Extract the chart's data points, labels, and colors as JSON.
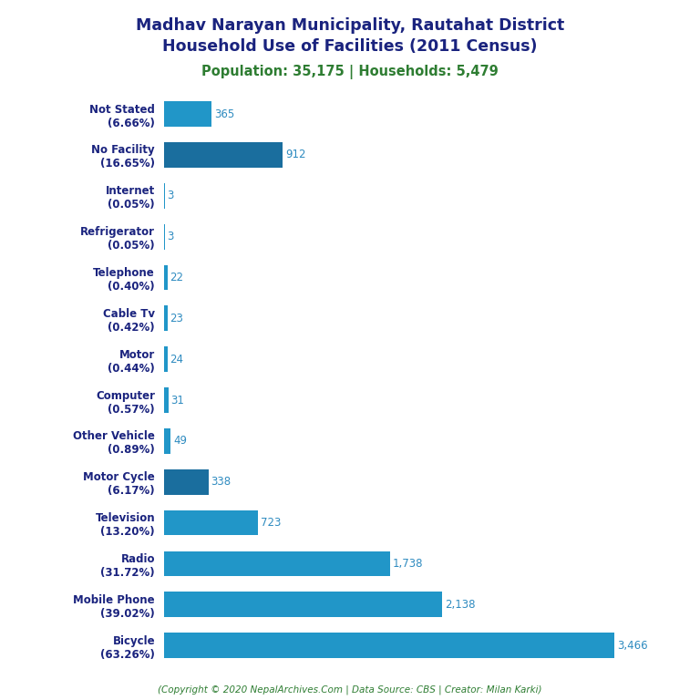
{
  "title_line1": "Madhav Narayan Municipality, Rautahat District",
  "title_line2": "Household Use of Facilities (2011 Census)",
  "subtitle": "Population: 35,175 | Households: 5,479",
  "footer": "(Copyright © 2020 NepalArchives.Com | Data Source: CBS | Creator: Milan Karki)",
  "categories": [
    "Bicycle\n(63.26%)",
    "Mobile Phone\n(39.02%)",
    "Radio\n(31.72%)",
    "Television\n(13.20%)",
    "Motor Cycle\n(6.17%)",
    "Other Vehicle\n(0.89%)",
    "Computer\n(0.57%)",
    "Motor\n(0.44%)",
    "Cable Tv\n(0.42%)",
    "Telephone\n(0.40%)",
    "Refrigerator\n(0.05%)",
    "Internet\n(0.05%)",
    "No Facility\n(16.65%)",
    "Not Stated\n(6.66%)"
  ],
  "values": [
    3466,
    2138,
    1738,
    723,
    338,
    49,
    31,
    24,
    23,
    22,
    3,
    3,
    912,
    365
  ],
  "bar_color_light": "#2196c8",
  "bar_color_dark": "#1a6e9e",
  "label_color": "#2e8bc0",
  "title_color": "#1a237e",
  "subtitle_color": "#2e7d32",
  "footer_color": "#2e7d32",
  "background_color": "#ffffff",
  "xlim": [
    0,
    3800
  ],
  "bar_height": 0.62
}
